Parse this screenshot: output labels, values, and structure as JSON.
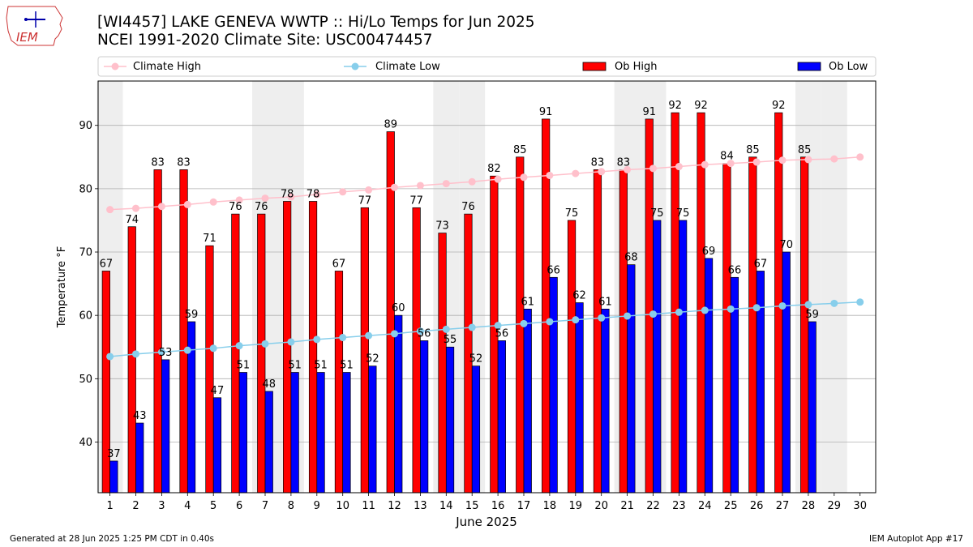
{
  "header": {
    "title_line1": "[WI4457] LAKE GENEVA WWTP :: Hi/Lo Temps for Jun 2025",
    "title_line2": "NCEI 1991-2020 Climate Site: USC00474457",
    "logo_text": "IEM"
  },
  "footer": {
    "generated": "Generated at 28 Jun 2025 1:25 PM CDT in 0.40s",
    "app": "IEM Autoplot App #17"
  },
  "colors": {
    "ob_high": "#ff0000",
    "ob_low": "#0000ff",
    "climate_high": "#ffc0cb",
    "climate_low": "#87ceeb",
    "weekend_shade": "#eeeeee",
    "logo": "#cc3333"
  },
  "chart_data": {
    "type": "bar",
    "xlabel": "June 2025",
    "ylabel": "Temperature °F",
    "ylim": [
      32,
      97
    ],
    "yticks": [
      40,
      50,
      60,
      70,
      80,
      90
    ],
    "grid": "horizontal",
    "legend_placement": "top, above plot",
    "categories": [
      "1",
      "2",
      "3",
      "4",
      "5",
      "6",
      "7",
      "8",
      "9",
      "10",
      "11",
      "12",
      "13",
      "14",
      "15",
      "16",
      "17",
      "18",
      "19",
      "20",
      "21",
      "22",
      "23",
      "24",
      "25",
      "26",
      "27",
      "28",
      "29",
      "30"
    ],
    "weekend_days": [
      1,
      7,
      8,
      14,
      15,
      21,
      22,
      28,
      29
    ],
    "series": [
      {
        "name": "Climate High",
        "kind": "line",
        "values": [
          76.7,
          76.9,
          77.2,
          77.5,
          77.9,
          78.2,
          78.5,
          78.7,
          79.1,
          79.5,
          79.8,
          80.2,
          80.5,
          80.8,
          81.1,
          81.5,
          81.8,
          82.1,
          82.4,
          82.7,
          83.0,
          83.2,
          83.5,
          83.8,
          84.0,
          84.2,
          84.5,
          84.6,
          84.7,
          85.0
        ]
      },
      {
        "name": "Climate Low",
        "kind": "line",
        "values": [
          53.5,
          53.9,
          54.2,
          54.5,
          54.8,
          55.2,
          55.5,
          55.8,
          56.2,
          56.5,
          56.8,
          57.1,
          57.5,
          57.8,
          58.1,
          58.4,
          58.7,
          59.0,
          59.3,
          59.6,
          59.9,
          60.2,
          60.5,
          60.8,
          61.0,
          61.2,
          61.5,
          61.7,
          61.9,
          62.1
        ]
      },
      {
        "name": "Ob High",
        "kind": "bar",
        "values": [
          67,
          74,
          83,
          83,
          71,
          76,
          76,
          78,
          78,
          67,
          77,
          89,
          77,
          73,
          76,
          82,
          85,
          91,
          75,
          83,
          83,
          91,
          92,
          92,
          84,
          85,
          92,
          85,
          null,
          null
        ]
      },
      {
        "name": "Ob Low",
        "kind": "bar",
        "values": [
          37,
          43,
          53,
          59,
          47,
          51,
          48,
          51,
          51,
          51,
          52,
          60,
          56,
          55,
          52,
          56,
          61,
          66,
          62,
          61,
          68,
          75,
          75,
          69,
          66,
          67,
          70,
          59,
          null,
          null
        ]
      }
    ]
  }
}
